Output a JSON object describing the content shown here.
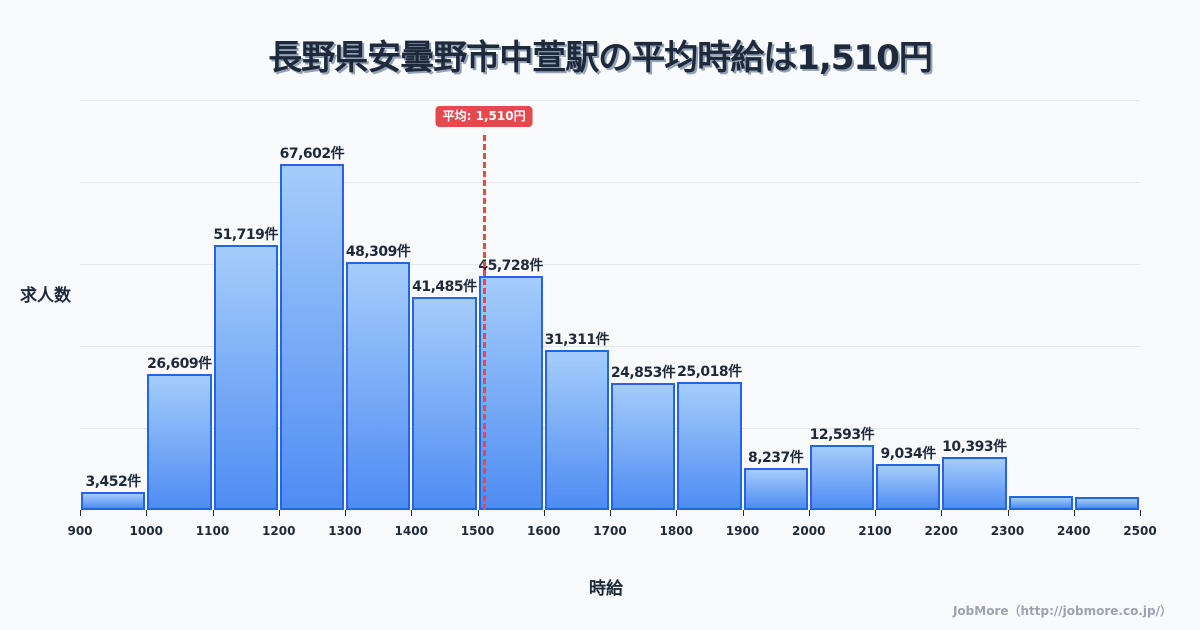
{
  "title": "長野県安曇野市中萱駅の平均時給は1,510円",
  "mean_badge": "平均: 1,510円",
  "axis": {
    "ylabel": "求人数",
    "xlabel": "時給"
  },
  "credit": "JobMore（http://jobmore.co.jp/）",
  "colors": {
    "bar_border": "#2563EB",
    "bar_top": "#A5CDFB",
    "bar_bottom": "#4F8CF3",
    "mean_line": "#E5484D",
    "text": "#1E293B",
    "background": "#F8FAFC"
  },
  "chart_data": {
    "type": "bar",
    "title": "長野県安曇野市中萱駅の平均時給は1,510円",
    "xlabel": "時給",
    "ylabel": "求人数",
    "bins": [
      [
        900,
        1000
      ],
      [
        1000,
        1100
      ],
      [
        1100,
        1200
      ],
      [
        1200,
        1300
      ],
      [
        1300,
        1400
      ],
      [
        1400,
        1500
      ],
      [
        1500,
        1600
      ],
      [
        1600,
        1700
      ],
      [
        1700,
        1800
      ],
      [
        1800,
        1900
      ],
      [
        1900,
        2000
      ],
      [
        2000,
        2100
      ],
      [
        2100,
        2200
      ],
      [
        2200,
        2300
      ],
      [
        2300,
        2400
      ],
      [
        2400,
        2500
      ]
    ],
    "categories": [
      "900-1000",
      "1000-1100",
      "1100-1200",
      "1200-1300",
      "1300-1400",
      "1400-1500",
      "1500-1600",
      "1600-1700",
      "1700-1800",
      "1800-1900",
      "1900-2000",
      "2000-2100",
      "2100-2200",
      "2200-2300",
      "2300-2400",
      "2400-2500"
    ],
    "values": [
      3452,
      26609,
      51719,
      67602,
      48309,
      41485,
      45728,
      31311,
      24853,
      25018,
      8237,
      12593,
      9034,
      10393,
      2700,
      2500
    ],
    "labels": [
      "3,452件",
      "26,609件",
      "51,719件",
      "67,602件",
      "48,309件",
      "41,485件",
      "45,728件",
      "31,311件",
      "24,853件",
      "25,018件",
      "8,237件",
      "12,593件",
      "9,034件",
      "10,393件",
      "",
      ""
    ],
    "x_ticks": [
      "900",
      "1000",
      "1100",
      "1200",
      "1300",
      "1400",
      "1500",
      "1600",
      "1700",
      "1800",
      "1900",
      "2000",
      "2100",
      "2200",
      "2300",
      "2400",
      "2500"
    ],
    "xlim": [
      900,
      2500
    ],
    "ylim": [
      0,
      80000
    ],
    "y_gridlines": [
      16000,
      32000,
      48000,
      64000,
      80000
    ],
    "grid": true,
    "annotations": [
      {
        "type": "vline",
        "x": 1510,
        "label": "平均: 1,510円",
        "style": "dashed",
        "color": "#E5484D"
      }
    ],
    "legend": null
  }
}
